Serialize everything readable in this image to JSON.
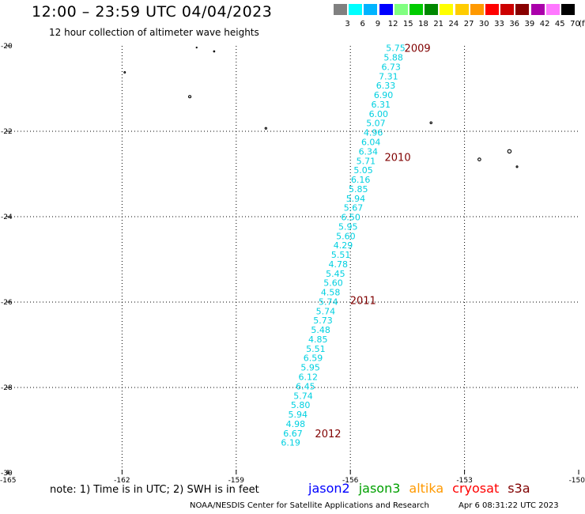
{
  "header": {
    "title": "12:00 – 23:59 UTC 04/04/2023",
    "subtitle": "12 hour collection of altimeter wave heights"
  },
  "color_scale": {
    "swatches": [
      "#808080",
      "#00ffff",
      "#00b4ff",
      "#0000ff",
      "#80ff80",
      "#00cc00",
      "#008800",
      "#ffff00",
      "#ffcc00",
      "#ff9900",
      "#ff0000",
      "#cc0000",
      "#880000",
      "#aa00aa",
      "#ff77ff",
      "#000000"
    ],
    "labels": [
      "3",
      "6",
      "9",
      "12",
      "15",
      "18",
      "21",
      "24",
      "27",
      "30",
      "33",
      "36",
      "39",
      "42",
      "45",
      "70",
      "(ft)"
    ]
  },
  "map": {
    "lon_range": [
      -165,
      -150
    ],
    "lat_range": [
      -30,
      -20
    ],
    "x_ticks": [
      "-165",
      "-162",
      "-159",
      "-156",
      "-153",
      "-150"
    ],
    "y_ticks": [
      "-20",
      "-22",
      "-24",
      "-26",
      "-28",
      "-30"
    ],
    "track_color": "#00d0e0",
    "hour_color": "#800000",
    "track": [
      {
        "lon": -154.81,
        "lat": -20.05,
        "swh": "5.75"
      },
      {
        "lon": -154.87,
        "lat": -20.27,
        "swh": "5.88"
      },
      {
        "lon": -154.93,
        "lat": -20.49,
        "swh": "6.73"
      },
      {
        "lon": -155.0,
        "lat": -20.71,
        "swh": "7.31"
      },
      {
        "lon": -155.07,
        "lat": -20.93,
        "swh": "6.33"
      },
      {
        "lon": -155.13,
        "lat": -21.15,
        "swh": "6.90"
      },
      {
        "lon": -155.2,
        "lat": -21.37,
        "swh": "6.31"
      },
      {
        "lon": -155.26,
        "lat": -21.59,
        "swh": "6.00"
      },
      {
        "lon": -155.33,
        "lat": -21.81,
        "swh": "5.07"
      },
      {
        "lon": -155.4,
        "lat": -22.03,
        "swh": "4.96"
      },
      {
        "lon": -155.46,
        "lat": -22.25,
        "swh": "6.04"
      },
      {
        "lon": -155.53,
        "lat": -22.47,
        "swh": "6.34"
      },
      {
        "lon": -155.59,
        "lat": -22.69,
        "swh": "5.71"
      },
      {
        "lon": -155.66,
        "lat": -22.91,
        "swh": "5.05"
      },
      {
        "lon": -155.73,
        "lat": -23.13,
        "swh": "6.16"
      },
      {
        "lon": -155.79,
        "lat": -23.35,
        "swh": "5.85"
      },
      {
        "lon": -155.86,
        "lat": -23.57,
        "swh": "5.94"
      },
      {
        "lon": -155.92,
        "lat": -23.79,
        "swh": "5.67"
      },
      {
        "lon": -155.99,
        "lat": -24.01,
        "swh": "6.50"
      },
      {
        "lon": -156.06,
        "lat": -24.23,
        "swh": "5.95"
      },
      {
        "lon": -156.12,
        "lat": -24.45,
        "swh": "5.60"
      },
      {
        "lon": -156.19,
        "lat": -24.67,
        "swh": "4.29"
      },
      {
        "lon": -156.25,
        "lat": -24.89,
        "swh": "5.51"
      },
      {
        "lon": -156.32,
        "lat": -25.11,
        "swh": "4.78"
      },
      {
        "lon": -156.39,
        "lat": -25.33,
        "swh": "5.45"
      },
      {
        "lon": -156.45,
        "lat": -25.55,
        "swh": "5.60"
      },
      {
        "lon": -156.52,
        "lat": -25.77,
        "swh": "4.58"
      },
      {
        "lon": -156.58,
        "lat": -25.99,
        "swh": "5.74"
      },
      {
        "lon": -156.65,
        "lat": -26.21,
        "swh": "5.74"
      },
      {
        "lon": -156.72,
        "lat": -26.43,
        "swh": "5.73"
      },
      {
        "lon": -156.78,
        "lat": -26.65,
        "swh": "5.48"
      },
      {
        "lon": -156.85,
        "lat": -26.87,
        "swh": "4.85"
      },
      {
        "lon": -156.91,
        "lat": -27.09,
        "swh": "5.51"
      },
      {
        "lon": -156.98,
        "lat": -27.31,
        "swh": "6.59"
      },
      {
        "lon": -157.05,
        "lat": -27.53,
        "swh": "5.95"
      },
      {
        "lon": -157.11,
        "lat": -27.75,
        "swh": "6.12"
      },
      {
        "lon": -157.18,
        "lat": -27.97,
        "swh": "6.45"
      },
      {
        "lon": -157.24,
        "lat": -28.19,
        "swh": "5.74"
      },
      {
        "lon": -157.31,
        "lat": -28.41,
        "swh": "5.80"
      },
      {
        "lon": -157.38,
        "lat": -28.63,
        "swh": "5.94"
      },
      {
        "lon": -157.44,
        "lat": -28.85,
        "swh": "4.98"
      },
      {
        "lon": -157.51,
        "lat": -29.07,
        "swh": "6.67"
      },
      {
        "lon": -157.57,
        "lat": -29.29,
        "swh": "6.19"
      }
    ],
    "hour_labels": [
      {
        "text": "2009",
        "lon": -154.58,
        "lat": -20.05
      },
      {
        "text": "2010",
        "lon": -155.1,
        "lat": -22.6
      },
      {
        "text": "2011",
        "lon": -156.01,
        "lat": -25.95
      },
      {
        "text": "2012",
        "lon": -156.93,
        "lat": -29.07
      }
    ],
    "islands": [
      {
        "lon": -160.04,
        "lat": -20.04,
        "r": 0.6
      },
      {
        "lon": -159.58,
        "lat": -20.13,
        "r": 0.8
      },
      {
        "lon": -161.93,
        "lat": -20.62,
        "r": 0.9
      },
      {
        "lon": -160.22,
        "lat": -21.19,
        "r": 1.5
      },
      {
        "lon": -158.22,
        "lat": -21.93,
        "r": 1.1
      },
      {
        "lon": -153.88,
        "lat": -21.8,
        "r": 1.2
      },
      {
        "lon": -151.82,
        "lat": -22.47,
        "r": 2.2
      },
      {
        "lon": -152.61,
        "lat": -22.66,
        "r": 1.8
      },
      {
        "lon": -151.62,
        "lat": -22.83,
        "r": 1.0
      }
    ]
  },
  "footer": {
    "note": "note: 1) Time is in UTC; 2) SWH is in feet",
    "satellites": [
      {
        "name": "jason2",
        "color": "#0000ff"
      },
      {
        "name": "jason3",
        "color": "#00a000"
      },
      {
        "name": "altika",
        "color": "#ff9900"
      },
      {
        "name": "cryosat",
        "color": "#ff0000"
      },
      {
        "name": "s3a",
        "color": "#800000"
      }
    ],
    "credit": "NOAA/NESDIS Center for Satellite Applications and Research",
    "timestamp": "Apr  6 08:31:22 UTC 2023"
  }
}
